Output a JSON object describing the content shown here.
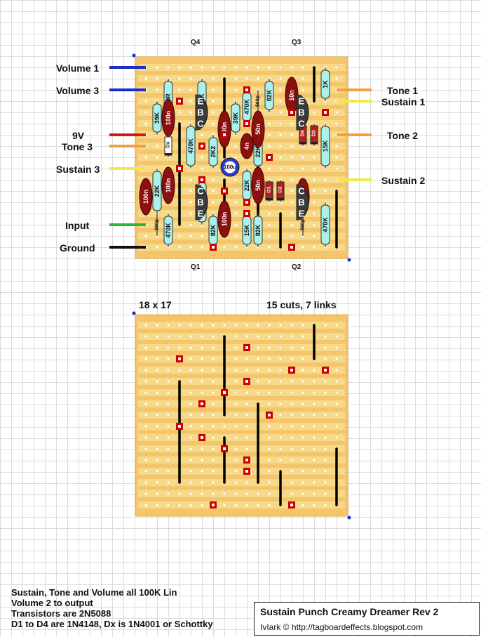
{
  "layout": {
    "connections_left": [
      {
        "label": "Volume 1",
        "wire_color": "#1a2ec8"
      },
      {
        "label": "Volume 3",
        "wire_color": "#1a2ec8"
      },
      {
        "label": "9V",
        "wire_color": "#cc1a1a"
      },
      {
        "label": "Tone 3",
        "wire_color": "#f0a040"
      },
      {
        "label": "Sustain 3",
        "wire_color": "#f2e84a"
      },
      {
        "label": "Input",
        "wire_color": "#2fb82f"
      },
      {
        "label": "Ground",
        "wire_color": "#111111"
      }
    ],
    "connections_right": [
      {
        "label": "Tone 1",
        "wire_color": "#f0a040"
      },
      {
        "label": "Sustain 1",
        "wire_color": "#f2e84a"
      },
      {
        "label": "Tone 2",
        "wire_color": "#f0a040"
      },
      {
        "label": "Sustain 2",
        "wire_color": "#f2e84a"
      }
    ],
    "transistors": [
      {
        "id": "Q4",
        "pins": [
          "E",
          "B",
          "C"
        ]
      },
      {
        "id": "Q3",
        "pins": [
          "E",
          "B",
          "C"
        ]
      },
      {
        "id": "Q1",
        "pins": [
          "C",
          "B",
          "E"
        ]
      },
      {
        "id": "Q2",
        "pins": [
          "C",
          "B",
          "E"
        ]
      }
    ],
    "resistors": [
      "390R",
      "100K",
      "39K",
      "470K",
      "2K2",
      "39K",
      "470K",
      "82K",
      "22K",
      "1K",
      "15K",
      "22K",
      "33K",
      "82K",
      "22K",
      "15K",
      "82K",
      "470K",
      "470K"
    ],
    "capacitors_film": [
      "100n",
      "100n",
      "100n",
      "100n",
      "10n",
      "4n",
      "50n",
      "50n",
      "100n",
      "100n"
    ],
    "capacitors_ceramic": [
      "560p",
      "560p",
      "560p"
    ],
    "capacitor_electrolytic": "100u",
    "diodes": [
      "Dx",
      "D1",
      "D2",
      "D3",
      "D4"
    ]
  },
  "board": {
    "size_label": "18 x 17",
    "cuts_links_label": "15 cuts, 7 links"
  },
  "notes": [
    "Sustain, Tone and Volume all 100K Lin",
    "Volume 2 to output",
    "Transistors are 2N5088",
    "D1 to D4 are 1N4148, Dx is 1N4001 or Schottky"
  ],
  "title_box": {
    "title": "Sustain Punch Creamy Dreamer Rev 2",
    "credit": "IvIark © http://tagboardeffects.blogspot.com"
  },
  "colors": {
    "board": "#f4c56a",
    "strip": "#f7d98a",
    "hole": "#ffffff",
    "resistor": "#aaf0ec",
    "film_cap": "#8c1010",
    "transistor": "#3a3a3a",
    "cut_marker": "#cc0000",
    "link": "#000000",
    "corner_dot": "#1a2ec8"
  }
}
